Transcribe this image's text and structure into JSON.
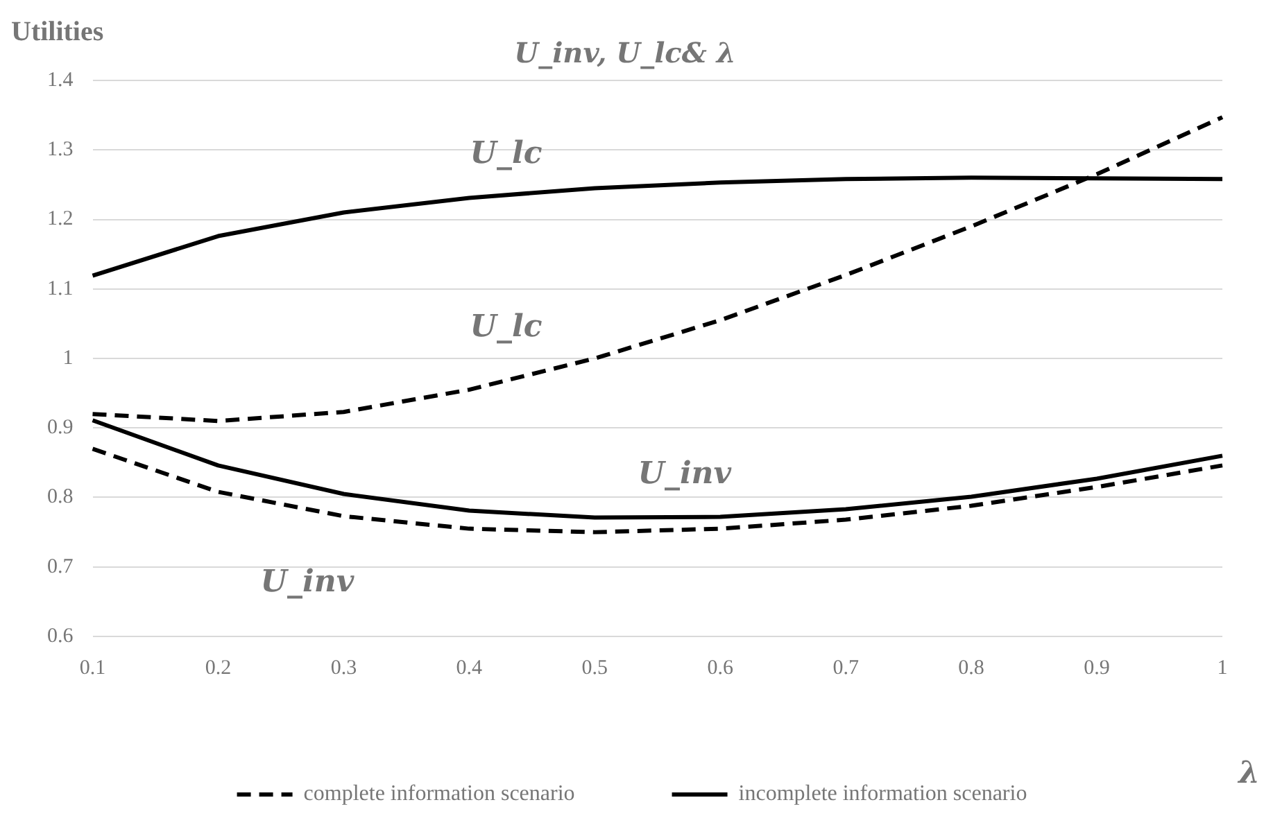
{
  "chart_data": {
    "type": "line",
    "title": "U_inv, U_lc& λ",
    "ylabel": "Utilities",
    "xlabel": "λ",
    "categories": [
      "0.1",
      "0.2",
      "0.3",
      "0.4",
      "0.5",
      "0.6",
      "0.7",
      "0.8",
      "0.9",
      "1"
    ],
    "series": [
      {
        "name": "complete information scenario",
        "color": "#000000",
        "line_style": "dashed",
        "values": [
          0.92,
          0.91,
          0.923,
          0.955,
          1.0,
          1.055,
          1.12,
          1.19,
          1.265,
          1.347
        ]
      },
      {
        "color": "#000000",
        "line_style": "dashed",
        "values": [
          0.87,
          0.808,
          0.773,
          0.755,
          0.75,
          0.755,
          0.768,
          0.788,
          0.815,
          0.846
        ]
      },
      {
        "name": "incomplete information scenario",
        "color": "#000000",
        "line_style": "solid",
        "values": [
          1.119,
          1.176,
          1.21,
          1.231,
          1.245,
          1.253,
          1.258,
          1.26,
          1.259,
          1.258
        ]
      },
      {
        "color": "#000000",
        "line_style": "solid",
        "values": [
          0.911,
          0.846,
          0.805,
          0.781,
          0.771,
          0.772,
          0.783,
          0.801,
          0.827,
          0.86
        ]
      }
    ],
    "ylim": [
      0.6,
      1.4
    ],
    "yticks": [
      0.6,
      0.7,
      0.8,
      0.9,
      1,
      1.1,
      1.2,
      1.3,
      1.4
    ],
    "grid": "y",
    "legend": "bottom",
    "marker": "none",
    "annotations": [
      "U_lc",
      "U_lc",
      "U_inv",
      "U_inv"
    ]
  }
}
